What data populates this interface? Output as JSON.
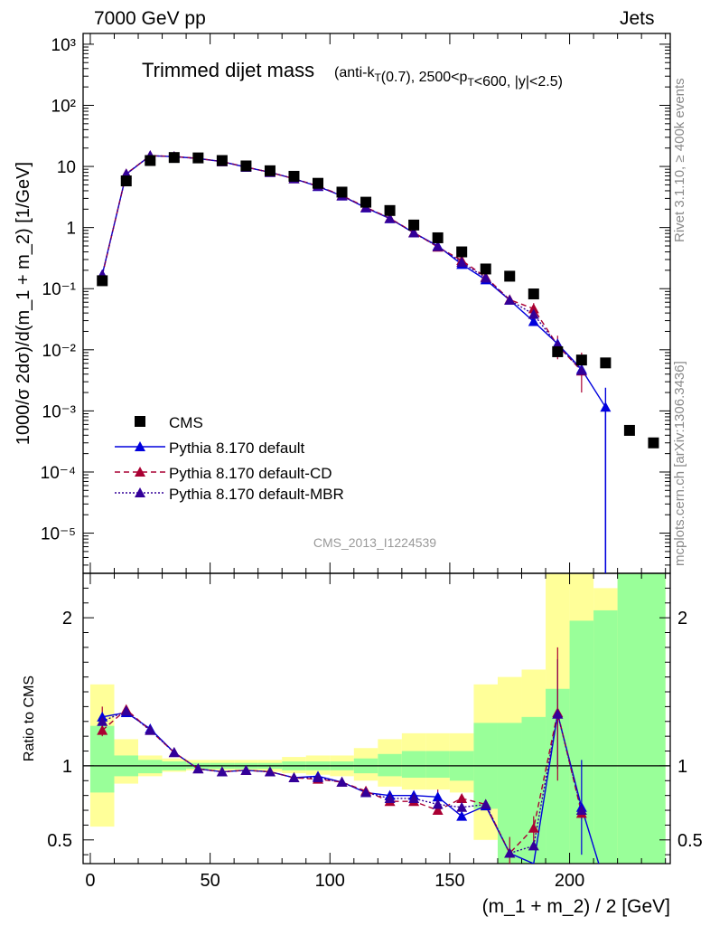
{
  "header": {
    "left": "7000 GeV pp",
    "right": "Jets"
  },
  "side": {
    "rivet": "Rivet 3.1.10, ≥ 400k events",
    "mcplots": "mcplots.cern.ch [arXiv:1306.3436]"
  },
  "colors": {
    "data": "#000000",
    "default": "#0000dd",
    "cd": "#aa0033",
    "mbr": "#330099",
    "band_green": "#99ff99",
    "band_yellow": "#ffff99",
    "ref_text": "#999999"
  },
  "chart_data": [
    {
      "type": "scatter",
      "title": "Trimmed dijet mass",
      "subtitle": "(anti-kT(0.7), 2500<pT<600, |y|<2.5)",
      "ylabel": "1000/σ 2dσ)/d(m_1 + m_2) [1/GeV]",
      "yscale": "log",
      "xlim": [
        -3,
        242
      ],
      "ylim": [
        2.2e-06,
        1500
      ],
      "ytick_labels": [
        "10⁻⁵",
        "10⁻⁴",
        "10⁻³",
        "10⁻²",
        "10⁻¹",
        "1",
        "10",
        "10²",
        "10³"
      ],
      "reference_label": "CMS_2013_I1224539",
      "legend": [
        "CMS",
        "Pythia 8.170 default",
        "Pythia 8.170 default-CD",
        "Pythia 8.170 default-MBR"
      ],
      "series": [
        {
          "name": "CMS",
          "x": [
            5,
            15,
            25,
            35,
            45,
            55,
            65,
            75,
            85,
            95,
            105,
            115,
            125,
            135,
            145,
            155,
            165,
            175,
            185,
            195,
            205,
            215,
            225,
            235
          ],
          "y": [
            0.135,
            5.8,
            12.5,
            14.0,
            13.8,
            12.5,
            10.2,
            8.5,
            6.9,
            5.3,
            3.8,
            2.6,
            1.9,
            1.1,
            0.68,
            0.4,
            0.21,
            0.16,
            0.082,
            0.0093,
            0.0068,
            0.0061,
            0.00048,
            0.0003
          ]
        },
        {
          "name": "Pythia 8.170 default",
          "x": [
            5,
            15,
            25,
            35,
            45,
            55,
            65,
            75,
            85,
            95,
            105,
            115,
            125,
            135,
            145,
            155,
            165,
            175,
            185,
            195,
            205,
            215,
            215
          ],
          "y": [
            0.17,
            7.5,
            15.0,
            14.5,
            13.5,
            12.0,
            9.7,
            8.0,
            6.3,
            4.7,
            3.3,
            2.1,
            1.4,
            0.82,
            0.5,
            0.25,
            0.14,
            0.065,
            0.029,
            0.0125,
            0.0048,
            0.00115,
            2.2e-06
          ]
        },
        {
          "name": "Pythia 8.170 default-CD",
          "x": [
            5,
            15,
            25,
            35,
            45,
            55,
            65,
            75,
            85,
            95,
            105,
            115,
            125,
            135,
            145,
            155,
            165,
            175,
            185,
            195,
            205
          ],
          "y": [
            0.165,
            7.6,
            15.0,
            14.6,
            13.5,
            12.0,
            9.8,
            8.0,
            6.3,
            4.8,
            3.35,
            2.15,
            1.42,
            0.83,
            0.48,
            0.29,
            0.155,
            0.066,
            0.047,
            0.0118,
            0.0045
          ]
        },
        {
          "name": "Pythia 8.170 default-MBR",
          "x": [
            5,
            15,
            25,
            35,
            45,
            55,
            65,
            75,
            85,
            95,
            105,
            115,
            125,
            135,
            145,
            155,
            165,
            175,
            185,
            195,
            205
          ],
          "y": [
            0.168,
            7.55,
            15.0,
            14.5,
            13.5,
            12.0,
            9.75,
            8.0,
            6.3,
            4.75,
            3.3,
            2.12,
            1.41,
            0.82,
            0.49,
            0.27,
            0.15,
            0.065,
            0.038,
            0.012,
            0.0046
          ]
        }
      ]
    },
    {
      "type": "line",
      "ylabel": "Ratio to CMS",
      "xlabel": "(m_1 + m_2) / 2 [GeV]",
      "xlim": [
        -3,
        242
      ],
      "ylim": [
        0.34,
        2.3
      ],
      "xticks": [
        0,
        50,
        100,
        150,
        200
      ],
      "yticks": [
        0.5,
        1,
        2
      ],
      "bands": {
        "x_edges": [
          0,
          10,
          20,
          30,
          40,
          50,
          60,
          70,
          80,
          90,
          100,
          110,
          120,
          130,
          140,
          150,
          160,
          170,
          180,
          190,
          200,
          210,
          220,
          240
        ],
        "green_low": [
          0.82,
          0.93,
          0.95,
          0.97,
          0.98,
          0.98,
          0.98,
          0.98,
          0.97,
          0.97,
          0.97,
          0.95,
          0.93,
          0.92,
          0.92,
          0.9,
          0.71,
          0.34,
          0.34,
          0.34,
          0.34,
          0.34,
          0.34
        ],
        "green_high": [
          1.27,
          1.07,
          1.04,
          1.03,
          1.02,
          1.02,
          1.02,
          1.02,
          1.03,
          1.03,
          1.03,
          1.05,
          1.08,
          1.1,
          1.1,
          1.1,
          1.29,
          1.29,
          1.33,
          1.52,
          1.98,
          2.05,
          2.3
        ],
        "yellow_low": [
          0.59,
          0.88,
          0.93,
          0.96,
          0.97,
          0.97,
          0.97,
          0.96,
          0.95,
          0.94,
          0.93,
          0.9,
          0.86,
          0.84,
          0.84,
          0.82,
          0.5,
          0.34,
          0.34,
          0.34,
          0.34,
          0.34,
          0.34
        ],
        "yellow_high": [
          1.55,
          1.18,
          1.07,
          1.05,
          1.04,
          1.04,
          1.04,
          1.04,
          1.06,
          1.07,
          1.07,
          1.12,
          1.18,
          1.22,
          1.22,
          1.22,
          1.55,
          1.6,
          1.65,
          2.3,
          2.3,
          2.2,
          2.3
        ]
      },
      "series": [
        {
          "name": "Pythia 8.170 default",
          "x": [
            5,
            15,
            25,
            35,
            45,
            55,
            65,
            75,
            85,
            95,
            105,
            115,
            125,
            135,
            145,
            155,
            165,
            175,
            185,
            195,
            205,
            215
          ],
          "y": [
            1.33,
            1.36,
            1.25,
            1.09,
            0.98,
            0.96,
            0.97,
            0.96,
            0.92,
            0.93,
            0.89,
            0.82,
            0.8,
            0.8,
            0.79,
            0.66,
            0.73,
            0.41,
            0.34,
            1.35,
            0.72,
            0.19
          ]
        },
        {
          "name": "Pythia 8.170 default-CD",
          "x": [
            5,
            15,
            25,
            35,
            45,
            55,
            65,
            75,
            85,
            95,
            105,
            115,
            125,
            135,
            145,
            155,
            165,
            175,
            185,
            195,
            205
          ],
          "y": [
            1.24,
            1.38,
            1.24,
            1.09,
            0.98,
            0.96,
            0.97,
            0.96,
            0.92,
            0.91,
            0.89,
            0.83,
            0.76,
            0.76,
            0.7,
            0.78,
            0.74,
            0.41,
            0.58,
            1.36,
            0.68
          ]
        },
        {
          "name": "Pythia 8.170 default-MBR",
          "x": [
            5,
            15,
            25,
            35,
            45,
            55,
            65,
            75,
            85,
            95,
            105,
            115,
            125,
            135,
            145,
            155,
            165,
            175,
            185,
            195,
            205
          ],
          "y": [
            1.3,
            1.37,
            1.24,
            1.09,
            0.98,
            0.96,
            0.97,
            0.96,
            0.92,
            0.92,
            0.89,
            0.82,
            0.78,
            0.78,
            0.74,
            0.72,
            0.74,
            0.41,
            0.46,
            1.35,
            0.7
          ]
        }
      ]
    }
  ]
}
